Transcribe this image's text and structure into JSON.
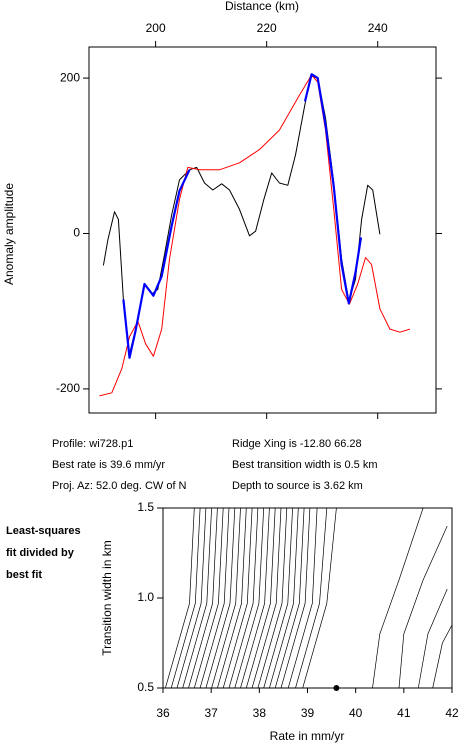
{
  "chart_data": [
    {
      "type": "line",
      "xlabel": "Distance (km)",
      "ylabel": "Anomaly amplitude",
      "xlim": [
        188,
        250.5
      ],
      "ylim": [
        -231,
        240
      ],
      "xticks": [
        200,
        220,
        240
      ],
      "yticks": [
        200,
        0,
        -200
      ],
      "series": [
        {
          "color": "#000000",
          "x": [
            190.6,
            191.4,
            192.6,
            193.3,
            194.2,
            195.3,
            196.4,
            198,
            199.3,
            200.4,
            201.6,
            202.9,
            204.3,
            206.1,
            207.4,
            208.8,
            210.3,
            211.9,
            213.3,
            215.1,
            216.9,
            218,
            219.5,
            220.9,
            222.3,
            223.8,
            225.2,
            226.7,
            227.9,
            229.2,
            230.6,
            232.1,
            233.5,
            234.8,
            236,
            237.1,
            238.2,
            239.1,
            240.4
          ],
          "values": [
            -41,
            -8,
            28,
            18,
            -85,
            -155,
            -123,
            -65,
            -78,
            -72,
            -27,
            24,
            69,
            82,
            85,
            65,
            56,
            64,
            56,
            31,
            -3,
            3,
            44,
            78,
            65,
            62,
            101,
            159,
            203,
            200,
            149,
            65,
            -33,
            -87,
            -59,
            18,
            62,
            56,
            -1
          ]
        },
        {
          "color": "#ff0000",
          "x": [
            189.9,
            192.1,
            193.9,
            195.3,
            196.8,
            198.2,
            199.6,
            201.1,
            202.5,
            204.3,
            205.8,
            207.9,
            211.5,
            215.1,
            218.7,
            222.3,
            225.9,
            228.1,
            229.2,
            230.6,
            232.1,
            233.5,
            234.9,
            236.4,
            237.8,
            238.9,
            240.4,
            242.2,
            244,
            245.8
          ],
          "values": [
            -209,
            -205,
            -174,
            -133,
            -113,
            -142,
            -158,
            -123,
            -33,
            44,
            85,
            82,
            82,
            91,
            108,
            133,
            178,
            204,
            195,
            133,
            31,
            -72,
            -91,
            -65,
            -31,
            -40,
            -97,
            -123,
            -127,
            -123
          ]
        },
        {
          "color": "#0000ff",
          "x": [
            194.2,
            195.3,
            196.4,
            198,
            199.6,
            201.1,
            202.9,
            204.3,
            206.1,
            215,
            226.9,
            228.1,
            229.2,
            230.6,
            232.1,
            233.5,
            234.8,
            236,
            237
          ],
          "values": [
            -85,
            -160,
            -125,
            -65,
            -80,
            -55,
            10,
            55,
            82,
            null,
            170,
            205,
            200,
            140,
            60,
            -40,
            -90,
            -50,
            -5
          ]
        }
      ],
      "annotations": [
        "Profile: wi728.p1",
        "Best rate is 39.6 mm/yr",
        "Proj. Az: 52.0 deg. CW of N",
        "Ridge Xing is -12.80 66.28",
        "Best transition width is 0.5 km",
        "Depth to source is   3.62 km"
      ]
    },
    {
      "type": "contour",
      "xlabel": "Rate in mm/yr",
      "ylabel": "Transition width in km",
      "note": [
        "Least-squares",
        "fit divided by",
        "best fit"
      ],
      "xlim": [
        36,
        42
      ],
      "ylim": [
        0.5,
        1.5
      ],
      "xticks": [
        36,
        37,
        38,
        39,
        40,
        41,
        42
      ],
      "yticks": [
        0.5,
        {
          "value": 1,
          "label": "1.0"
        },
        1.5
      ],
      "best_fit": {
        "x": 39.6,
        "y": 0.5
      },
      "contours": [
        {
          "x": [
            36.05,
            36.55,
            36.65
          ],
          "y": [
            0.5,
            0.97,
            1.5
          ]
        },
        {
          "x": [
            36.17,
            36.67,
            36.77
          ],
          "y": [
            0.5,
            0.97,
            1.5
          ]
        },
        {
          "x": [
            36.29,
            36.79,
            36.89
          ],
          "y": [
            0.5,
            0.97,
            1.5
          ]
        },
        {
          "x": [
            36.41,
            36.91,
            37.01
          ],
          "y": [
            0.5,
            0.97,
            1.5
          ]
        },
        {
          "x": [
            36.53,
            37.03,
            37.13
          ],
          "y": [
            0.5,
            0.97,
            1.5
          ]
        },
        {
          "x": [
            36.65,
            37.15,
            37.25
          ],
          "y": [
            0.5,
            0.97,
            1.5
          ]
        },
        {
          "x": [
            36.77,
            37.27,
            37.37
          ],
          "y": [
            0.5,
            0.97,
            1.5
          ]
        },
        {
          "x": [
            36.89,
            37.39,
            37.49
          ],
          "y": [
            0.5,
            0.97,
            1.5
          ]
        },
        {
          "x": [
            37.01,
            37.51,
            37.61
          ],
          "y": [
            0.5,
            0.97,
            1.5
          ]
        },
        {
          "x": [
            37.13,
            37.63,
            37.73
          ],
          "y": [
            0.5,
            0.97,
            1.5
          ]
        },
        {
          "x": [
            37.25,
            37.75,
            37.85
          ],
          "y": [
            0.5,
            0.97,
            1.5
          ]
        },
        {
          "x": [
            37.37,
            37.87,
            37.97
          ],
          "y": [
            0.5,
            0.97,
            1.5
          ]
        },
        {
          "x": [
            37.49,
            37.99,
            38.09
          ],
          "y": [
            0.5,
            0.97,
            1.5
          ]
        },
        {
          "x": [
            37.61,
            38.11,
            38.21
          ],
          "y": [
            0.5,
            0.97,
            1.5
          ]
        },
        {
          "x": [
            37.73,
            38.23,
            38.33
          ],
          "y": [
            0.5,
            0.97,
            1.5
          ]
        },
        {
          "x": [
            37.85,
            38.35,
            38.45
          ],
          "y": [
            0.5,
            0.97,
            1.5
          ]
        },
        {
          "x": [
            37.97,
            38.47,
            38.57
          ],
          "y": [
            0.5,
            0.97,
            1.5
          ]
        },
        {
          "x": [
            38.09,
            38.59,
            38.69
          ],
          "y": [
            0.5,
            0.97,
            1.5
          ]
        },
        {
          "x": [
            38.21,
            38.71,
            38.81
          ],
          "y": [
            0.5,
            0.97,
            1.5
          ]
        },
        {
          "x": [
            38.33,
            38.83,
            38.93
          ],
          "y": [
            0.5,
            0.97,
            1.5
          ]
        },
        {
          "x": [
            38.45,
            38.95,
            39.05
          ],
          "y": [
            0.5,
            0.97,
            1.5
          ]
        },
        {
          "x": [
            38.6,
            39.1,
            39.2
          ],
          "y": [
            0.5,
            0.97,
            1.5
          ]
        },
        {
          "x": [
            38.75,
            39.25,
            39.4
          ],
          "y": [
            0.5,
            0.97,
            1.5
          ]
        },
        {
          "x": [
            38.9,
            39.4,
            39.6
          ],
          "y": [
            0.5,
            0.97,
            1.5
          ]
        },
        {
          "x": [
            40.35,
            40.5,
            40.9,
            41.4
          ],
          "y": [
            0.5,
            0.8,
            1.1,
            1.5
          ]
        },
        {
          "x": [
            40.9,
            41.0,
            41.4,
            41.9
          ],
          "y": [
            0.5,
            0.8,
            1.1,
            1.4
          ]
        },
        {
          "x": [
            41.3,
            41.5,
            41.9
          ],
          "y": [
            0.5,
            0.8,
            1.05
          ]
        },
        {
          "x": [
            41.6,
            41.8,
            42
          ],
          "y": [
            0.5,
            0.75,
            0.85
          ]
        }
      ]
    }
  ]
}
